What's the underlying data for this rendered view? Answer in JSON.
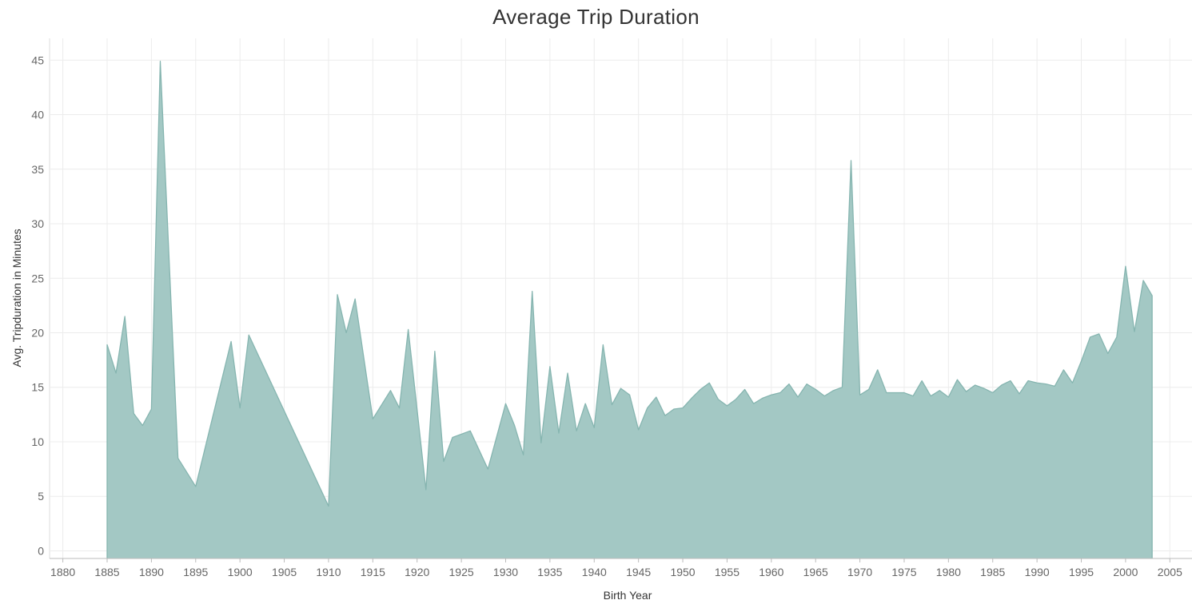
{
  "chart_data": {
    "type": "area",
    "title": "Average Trip Duration",
    "xlabel": "Birth Year",
    "ylabel": "Avg. Tripduration in Minutes",
    "xlim": [
      1878.5,
      2007.5
    ],
    "ylim": [
      -0.7,
      47
    ],
    "x_ticks": [
      1880,
      1885,
      1890,
      1895,
      1900,
      1905,
      1910,
      1915,
      1920,
      1925,
      1930,
      1935,
      1940,
      1945,
      1950,
      1955,
      1960,
      1965,
      1970,
      1975,
      1980,
      1985,
      1990,
      1995,
      2000,
      2005
    ],
    "y_ticks": [
      0,
      5,
      10,
      15,
      20,
      25,
      30,
      35,
      40,
      45
    ],
    "grid": true,
    "colors": {
      "fill": "#a3c8c4",
      "line": "#86b5b0",
      "grid": "#ececec"
    },
    "x": [
      1885,
      1886,
      1887,
      1888,
      1889,
      1890,
      1891,
      1893,
      1895,
      1899,
      1900,
      1901,
      1910,
      1911,
      1912,
      1913,
      1915,
      1917,
      1918,
      1919,
      1921,
      1922,
      1923,
      1924,
      1926,
      1928,
      1930,
      1931,
      1932,
      1933,
      1934,
      1935,
      1936,
      1937,
      1938,
      1939,
      1940,
      1941,
      1942,
      1943,
      1944,
      1945,
      1946,
      1947,
      1948,
      1949,
      1950,
      1951,
      1952,
      1953,
      1954,
      1955,
      1956,
      1957,
      1958,
      1959,
      1960,
      1961,
      1962,
      1963,
      1964,
      1965,
      1966,
      1967,
      1968,
      1969,
      1970,
      1971,
      1972,
      1973,
      1974,
      1975,
      1976,
      1977,
      1978,
      1979,
      1980,
      1981,
      1982,
      1983,
      1984,
      1985,
      1986,
      1987,
      1988,
      1989,
      1990,
      1991,
      1992,
      1993,
      1994,
      1995,
      1996,
      1997,
      1998,
      1999,
      2000,
      2001,
      2002,
      2003
    ],
    "values": [
      18.9,
      16.3,
      21.5,
      12.6,
      11.5,
      13.0,
      44.9,
      8.5,
      5.9,
      19.2,
      13.1,
      19.8,
      4.1,
      23.5,
      20.0,
      23.1,
      12.1,
      14.7,
      13.1,
      20.3,
      5.6,
      18.3,
      8.2,
      10.4,
      11.0,
      7.5,
      13.5,
      11.5,
      8.8,
      23.8,
      9.9,
      16.9,
      10.8,
      16.3,
      11.0,
      13.5,
      11.3,
      18.9,
      13.4,
      14.9,
      14.3,
      11.1,
      13.1,
      14.1,
      12.4,
      13.0,
      13.1,
      14.0,
      14.8,
      15.4,
      13.9,
      13.3,
      13.9,
      14.8,
      13.5,
      14.0,
      14.3,
      14.5,
      15.3,
      14.1,
      15.3,
      14.8,
      14.2,
      14.7,
      15.0,
      35.8,
      14.3,
      14.8,
      16.6,
      14.5,
      14.5,
      14.5,
      14.2,
      15.6,
      14.2,
      14.7,
      14.1,
      15.7,
      14.6,
      15.2,
      14.9,
      14.5,
      15.2,
      15.6,
      14.4,
      15.6,
      15.4,
      15.3,
      15.1,
      16.6,
      15.4,
      17.4,
      19.6,
      19.9,
      18.1,
      19.6,
      26.1,
      20.1,
      24.8,
      23.4
    ]
  }
}
